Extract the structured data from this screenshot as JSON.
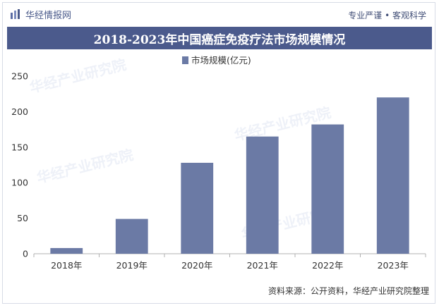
{
  "header": {
    "logo_text": "华经情报网",
    "slogan": "专业严谨 • 客观科学"
  },
  "watermark": "华经产业研究院",
  "footer": {
    "source": "资料来源：公开资料，华经产业研究院整理"
  },
  "colors": {
    "bar": "#6b7aa5",
    "title_bg": "#4b5a8c",
    "axis": "#b0b0b0",
    "text": "#333333"
  },
  "chart_data": {
    "type": "bar",
    "title": "2018-2023年中国癌症免疫疗法市场规模情况",
    "categories": [
      "2018年",
      "2019年",
      "2020年",
      "2021年",
      "2022年",
      "2023年"
    ],
    "series": [
      {
        "name": "市场规模(亿元)",
        "values": [
          8,
          49,
          128,
          165,
          182,
          220
        ]
      }
    ],
    "ylim": [
      0,
      250
    ],
    "yticks": [
      0,
      50,
      100,
      150,
      200,
      250
    ],
    "xlabel": "",
    "ylabel": "",
    "legend": "top-center",
    "grid": false
  }
}
